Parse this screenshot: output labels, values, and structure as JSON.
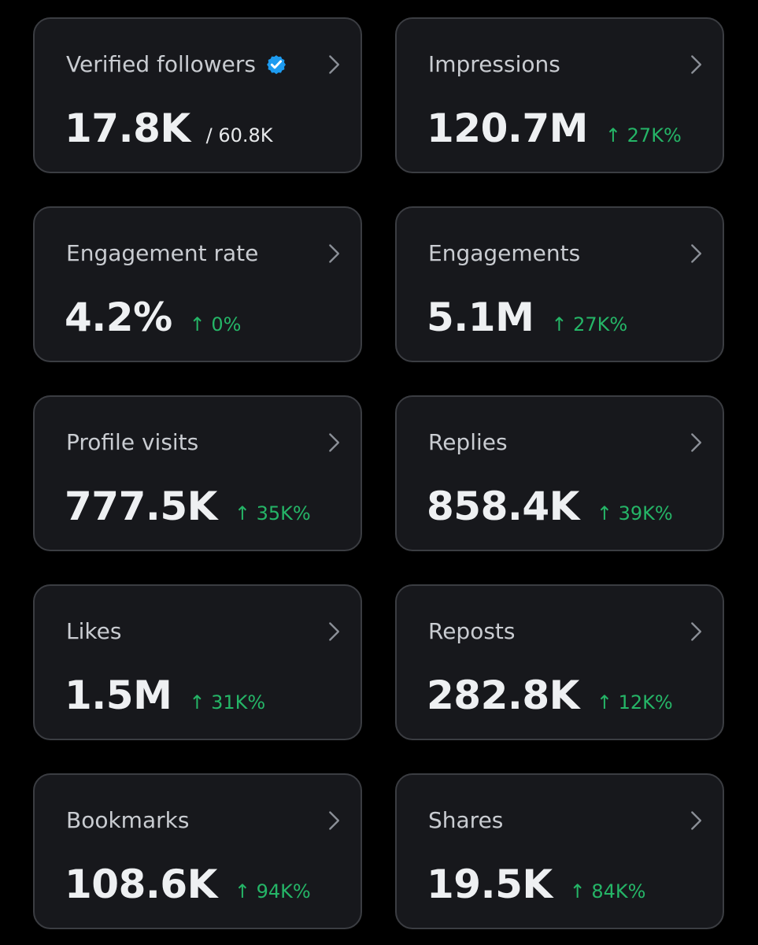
{
  "cards": [
    {
      "title": "Verified followers",
      "value": "17.8K",
      "secondary": "/ 60.8K",
      "icon": "verified-badge-icon"
    },
    {
      "title": "Impressions",
      "value": "120.7M",
      "change": "↑ 27K%"
    },
    {
      "title": "Engagement rate",
      "value": "4.2%",
      "change": "↑ 0%"
    },
    {
      "title": "Engagements",
      "value": "5.1M",
      "change": "↑ 27K%"
    },
    {
      "title": "Profile visits",
      "value": "777.5K",
      "change": "↑ 35K%"
    },
    {
      "title": "Replies",
      "value": "858.4K",
      "change": "↑ 39K%"
    },
    {
      "title": "Likes",
      "value": "1.5M",
      "change": "↑ 31K%"
    },
    {
      "title": "Reposts",
      "value": "282.8K",
      "change": "↑ 12K%"
    },
    {
      "title": "Bookmarks",
      "value": "108.6K",
      "change": "↑ 94K%"
    },
    {
      "title": "Shares",
      "value": "19.5K",
      "change": "↑ 84K%"
    }
  ],
  "colors": {
    "page_background": "#000000",
    "card_background": "#17181c",
    "card_border": "#3b3d42",
    "title_text": "#c9ccd1",
    "value_text": "#eef0f2",
    "change_positive": "#25b567",
    "verified_blue": "#1d9bf0",
    "chevron": "#8b8f97"
  }
}
